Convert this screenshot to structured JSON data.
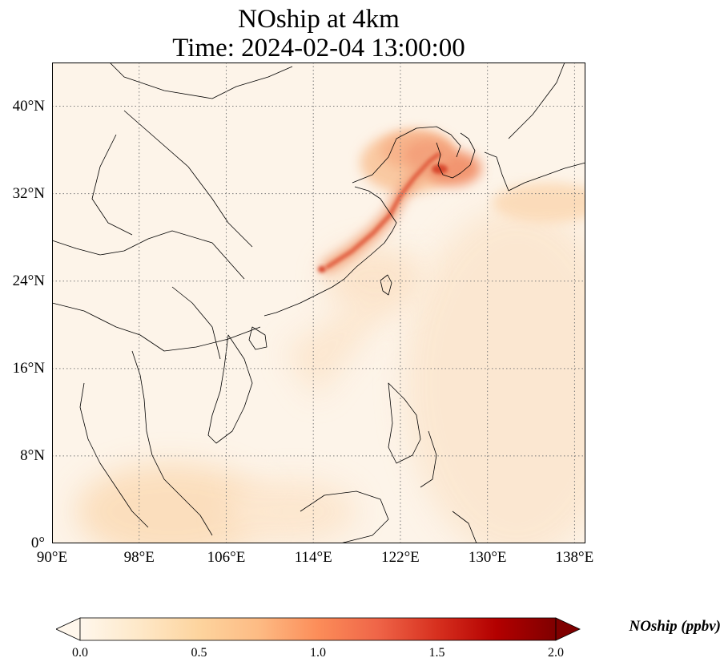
{
  "title": {
    "line1": "NOship at 4km",
    "line2": "Time: 2024-02-04 13:00:00"
  },
  "map": {
    "extent": {
      "lon": [
        90,
        139
      ],
      "lat": [
        0,
        44
      ]
    },
    "gridlines": "dotted",
    "background_color": "#fdf4e9",
    "lat_labels": [
      "40°N",
      "32°N",
      "24°N",
      "16°N",
      "8°N",
      "0°"
    ],
    "lon_labels": [
      "90°E",
      "98°E",
      "106°E",
      "114°E",
      "122°E",
      "130°E",
      "138°E"
    ],
    "plume": {
      "description": "NOship ship-track plume",
      "path_lonlat": [
        [
          115.3,
          25.3
        ],
        [
          117.5,
          26.7
        ],
        [
          119.5,
          28.4
        ],
        [
          121.0,
          30.0
        ],
        [
          122.0,
          31.8
        ],
        [
          123.3,
          33.5
        ],
        [
          124.7,
          35.0
        ],
        [
          125.5,
          35.6
        ]
      ],
      "peak_region_center": [
        125.0,
        35.3
      ]
    }
  },
  "colorbar": {
    "label": "NOship (ppbv)",
    "min": 0.0,
    "max": 2.0,
    "ticks": [
      "0.0",
      "0.5",
      "1.0",
      "1.5",
      "2.0"
    ],
    "extend": "both",
    "colormap": "OrRd",
    "colors": [
      "#fff7ec",
      "#fee8c8",
      "#fdd49e",
      "#fdbb84",
      "#fc8d59",
      "#ef6548",
      "#d7301f",
      "#b30000",
      "#7f0000"
    ]
  }
}
